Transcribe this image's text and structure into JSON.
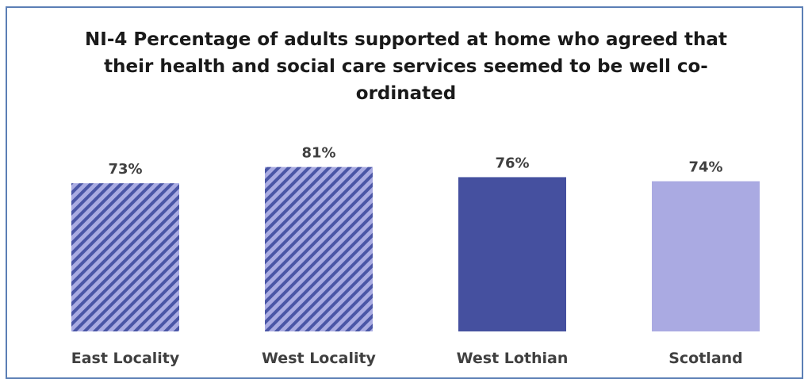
{
  "chart_data": {
    "type": "bar",
    "title": "NI-4 Percentage of adults supported at home who agreed that their health and social care services seemed to be well co-ordinated",
    "categories": [
      "East Locality",
      "West Locality",
      "West Lothian",
      "Scotland"
    ],
    "values": [
      73,
      81,
      76,
      74
    ],
    "value_labels": [
      "73%",
      "81%",
      "76%",
      "74%"
    ],
    "xlabel": "",
    "ylabel": "",
    "ylim": [
      0,
      100
    ],
    "grid": false,
    "legend": "none",
    "bar_styles": [
      {
        "fill": "hatched",
        "color": "#4a56a6",
        "stripe": "#a9abe2"
      },
      {
        "fill": "hatched",
        "color": "#4a56a6",
        "stripe": "#a9abe2"
      },
      {
        "fill": "solid",
        "color": "#45509f"
      },
      {
        "fill": "solid",
        "color": "#aaaae2"
      }
    ]
  }
}
